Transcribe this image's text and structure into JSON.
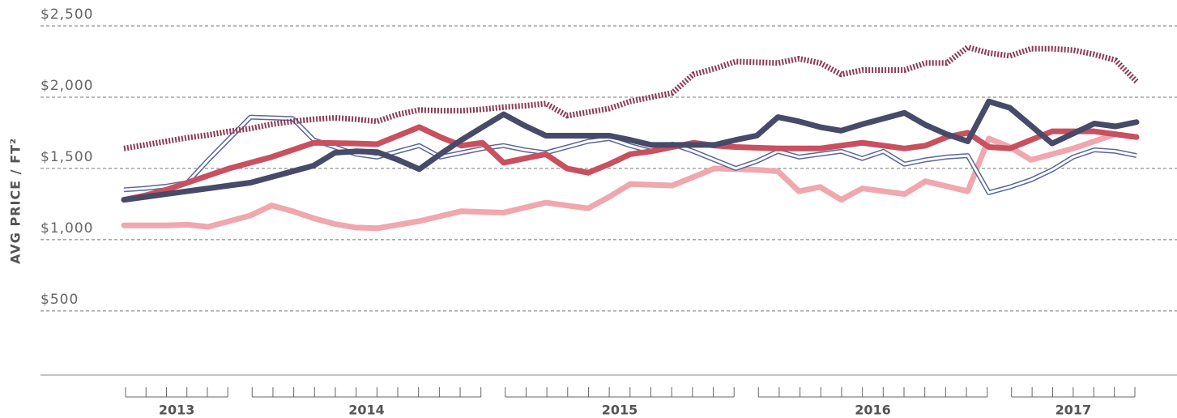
{
  "chart_data": {
    "type": "line",
    "y_label": "AVG PRICE / FT²",
    "categories": [
      null,
      null,
      null,
      null,
      null,
      null,
      null,
      null,
      null,
      null,
      null,
      null,
      null,
      null,
      null,
      null,
      null,
      null,
      null,
      null,
      null,
      null,
      null,
      null,
      null,
      null,
      null,
      null,
      null,
      null,
      null,
      null,
      null,
      null,
      null,
      null,
      null,
      null,
      null,
      null,
      null,
      null,
      null,
      null,
      null,
      null,
      null,
      null,
      null
    ],
    "x_groups": [
      {
        "label": "2013",
        "count": 6
      },
      {
        "label": "2014",
        "count": 12
      },
      {
        "label": "2015",
        "count": 12
      },
      {
        "label": "2016",
        "count": 12
      },
      {
        "label": "2017",
        "count": 7
      }
    ],
    "ylim": [
      50,
      2500
    ],
    "yticks": [
      {
        "value": 500,
        "label": "$500"
      },
      {
        "value": 1000,
        "label": "$1,000"
      },
      {
        "value": 1500,
        "label": "$1,500"
      },
      {
        "value": 2000,
        "label": "$2,000"
      },
      {
        "value": 2500,
        "label": "$2,500"
      }
    ],
    "grid": true,
    "series": [
      {
        "color": "#f0a7ad",
        "style": "solid",
        "values": [
          1100,
          1100,
          1100,
          1105,
          1090,
          1130,
          1170,
          1240,
          1200,
          1150,
          1110,
          1085,
          1080,
          1105,
          1130,
          1165,
          1200,
          1195,
          1190,
          1225,
          1260,
          1240,
          1220,
          1300,
          1390,
          1385,
          1380,
          1440,
          1500,
          1495,
          1490,
          1480,
          1340,
          1370,
          1280,
          1360,
          1340,
          1320,
          1410,
          1375,
          1340,
          1710,
          1650,
          1560,
          1600,
          1640,
          1690,
          1740,
          1720
        ]
      },
      {
        "color": "#5a6698",
        "style": "double",
        "values": [
          1350,
          1360,
          1375,
          1400,
          1560,
          1710,
          1860,
          1855,
          1850,
          1700,
          1650,
          1600,
          1580,
          1620,
          1660,
          1580,
          1610,
          1640,
          1660,
          1630,
          1610,
          1650,
          1690,
          1710,
          1660,
          1620,
          1670,
          1620,
          1560,
          1500,
          1550,
          1620,
          1580,
          1600,
          1620,
          1570,
          1620,
          1530,
          1560,
          1580,
          1590,
          1330,
          1370,
          1420,
          1490,
          1580,
          1630,
          1620,
          1590
        ]
      },
      {
        "color": "#8b3a55",
        "style": "dotted",
        "values": [
          1640,
          1665,
          1690,
          1715,
          1735,
          1760,
          1780,
          1810,
          1830,
          1845,
          1855,
          1845,
          1830,
          1880,
          1910,
          1905,
          1905,
          1915,
          1930,
          1940,
          1955,
          1870,
          1895,
          1920,
          1970,
          2000,
          2030,
          2160,
          2200,
          2250,
          2245,
          2240,
          2270,
          2240,
          2160,
          2190,
          2190,
          2190,
          2240,
          2240,
          2350,
          2310,
          2290,
          2340,
          2340,
          2330,
          2300,
          2260,
          2110
        ]
      },
      {
        "color": "#c8505f",
        "style": "solid",
        "values": [
          1280,
          1310,
          1350,
          1400,
          1450,
          1500,
          1540,
          1580,
          1630,
          1680,
          1678,
          1675,
          1670,
          1730,
          1790,
          1720,
          1660,
          1680,
          1540,
          1570,
          1600,
          1500,
          1470,
          1530,
          1600,
          1620,
          1650,
          1680,
          1660,
          1650,
          1645,
          1640,
          1640,
          1640,
          1660,
          1680,
          1660,
          1640,
          1660,
          1720,
          1750,
          1650,
          1640,
          1700,
          1760,
          1760,
          1760,
          1740,
          1720
        ]
      },
      {
        "color": "#474a68",
        "style": "solid",
        "values": [
          1280,
          1300,
          1320,
          1340,
          1360,
          1380,
          1400,
          1440,
          1480,
          1520,
          1610,
          1620,
          1615,
          1560,
          1495,
          1600,
          1700,
          1790,
          1880,
          1800,
          1730,
          1730,
          1730,
          1730,
          1700,
          1665,
          1665,
          1665,
          1665,
          1700,
          1730,
          1860,
          1830,
          1790,
          1765,
          1810,
          1850,
          1890,
          1805,
          1740,
          1690,
          1970,
          1925,
          1800,
          1675,
          1745,
          1815,
          1795,
          1825
        ]
      }
    ]
  }
}
